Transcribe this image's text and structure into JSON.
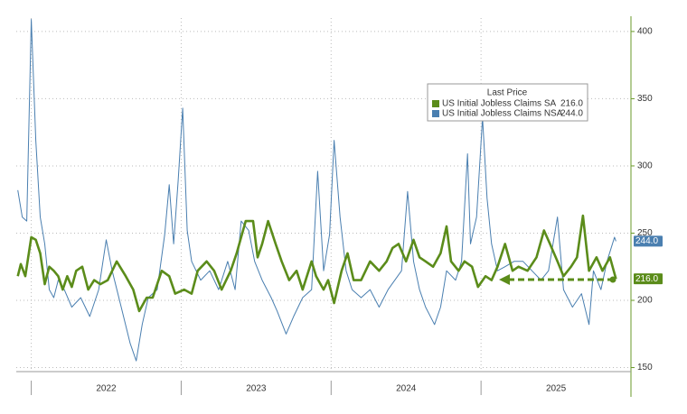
{
  "chart_data": {
    "type": "line",
    "xlim": [
      2021.9,
      2026.0
    ],
    "xticks": [
      2022,
      2023,
      2024,
      2025
    ],
    "ylim": [
      147,
      410
    ],
    "yticks": [
      150,
      200,
      250,
      300,
      350,
      400
    ],
    "grid": true,
    "legend_title": "Last Price",
    "legend": "upper right",
    "series": [
      {
        "name": "US Initial Jobless Claims SA",
        "color": "#5b8c1a",
        "last_price": {
          "value": 216,
          "label": "216.0"
        },
        "x": [
          2021.91,
          2021.93,
          2021.96,
          2022.0,
          2022.03,
          2022.06,
          2022.09,
          2022.12,
          2022.15,
          2022.18,
          2022.21,
          2022.24,
          2022.27,
          2022.3,
          2022.34,
          2022.38,
          2022.42,
          2022.46,
          2022.51,
          2022.57,
          2022.63,
          2022.68,
          2022.72,
          2022.77,
          2022.81,
          2022.87,
          2022.92,
          2022.96,
          2023.02,
          2023.07,
          2023.11,
          2023.17,
          2023.22,
          2023.27,
          2023.33,
          2023.37,
          2023.43,
          2023.48,
          2023.51,
          2023.54,
          2023.58,
          2023.63,
          2023.67,
          2023.72,
          2023.77,
          2023.81,
          2023.87,
          2023.9,
          2023.95,
          2023.98,
          2024.02,
          2024.07,
          2024.11,
          2024.15,
          2024.2,
          2024.26,
          2024.32,
          2024.37,
          2024.41,
          2024.45,
          2024.5,
          2024.55,
          2024.59,
          2024.63,
          2024.68,
          2024.73,
          2024.77,
          2024.8,
          2024.85,
          2024.89,
          2024.94,
          2024.98,
          2025.03,
          2025.07,
          2025.11,
          2025.16,
          2025.21,
          2025.25,
          2025.31,
          2025.37,
          2025.42,
          2025.46,
          2025.51,
          2025.55,
          2025.6,
          2025.64,
          2025.68,
          2025.72,
          2025.77,
          2025.81,
          2025.86,
          2025.9
        ],
        "values": [
          218,
          227,
          218,
          247,
          245,
          235,
          212,
          225,
          222,
          218,
          208,
          218,
          210,
          222,
          225,
          208,
          215,
          212,
          215,
          229,
          218,
          208,
          192,
          202,
          202,
          222,
          218,
          205,
          208,
          205,
          222,
          229,
          222,
          208,
          222,
          235,
          259,
          259,
          232,
          242,
          259,
          242,
          229,
          215,
          222,
          208,
          229,
          218,
          208,
          215,
          198,
          222,
          235,
          215,
          215,
          229,
          222,
          229,
          239,
          242,
          229,
          245,
          232,
          229,
          225,
          235,
          255,
          229,
          222,
          229,
          225,
          210,
          218,
          215,
          225,
          242,
          222,
          225,
          222,
          232,
          252,
          242,
          229,
          218,
          225,
          232,
          263,
          222,
          232,
          222,
          232,
          216
        ]
      },
      {
        "name": "US Initial Jobless Claims NSA",
        "color": "#4a7fb0",
        "last_price": {
          "value": 244,
          "label": "244.0"
        },
        "x": [
          2021.91,
          2021.94,
          2021.97,
          2022.0,
          2022.03,
          2022.06,
          2022.09,
          2022.12,
          2022.15,
          2022.18,
          2022.22,
          2022.27,
          2022.33,
          2022.39,
          2022.45,
          2022.5,
          2022.54,
          2022.6,
          2022.66,
          2022.7,
          2022.74,
          2022.78,
          2022.84,
          2022.89,
          2022.92,
          2022.95,
          2022.98,
          2023.01,
          2023.04,
          2023.07,
          2023.13,
          2023.19,
          2023.25,
          2023.31,
          2023.36,
          2023.4,
          2023.45,
          2023.49,
          2023.54,
          2023.6,
          2023.64,
          2023.7,
          2023.75,
          2023.81,
          2023.87,
          2023.91,
          2023.95,
          2023.99,
          2024.02,
          2024.06,
          2024.1,
          2024.14,
          2024.2,
          2024.26,
          2024.32,
          2024.38,
          2024.47,
          2024.51,
          2024.55,
          2024.59,
          2024.63,
          2024.69,
          2024.73,
          2024.77,
          2024.83,
          2024.87,
          2024.91,
          2024.93,
          2024.97,
          2025.01,
          2025.04,
          2025.07,
          2025.11,
          2025.16,
          2025.22,
          2025.28,
          2025.34,
          2025.4,
          2025.45,
          2025.51,
          2025.55,
          2025.61,
          2025.67,
          2025.72,
          2025.75,
          2025.8,
          2025.84,
          2025.89,
          2025.9
        ],
        "values": [
          282,
          262,
          259,
          409,
          319,
          262,
          242,
          208,
          202,
          215,
          208,
          195,
          202,
          188,
          208,
          245,
          222,
          195,
          168,
          155,
          182,
          202,
          208,
          249,
          286,
          242,
          289,
          343,
          252,
          229,
          215,
          222,
          208,
          229,
          208,
          259,
          252,
          229,
          215,
          202,
          192,
          175,
          188,
          202,
          208,
          296,
          222,
          249,
          319,
          262,
          222,
          208,
          202,
          208,
          195,
          208,
          222,
          281,
          229,
          208,
          195,
          182,
          195,
          222,
          215,
          229,
          309,
          242,
          262,
          336,
          276,
          242,
          222,
          225,
          229,
          229,
          222,
          215,
          222,
          262,
          208,
          195,
          205,
          182,
          222,
          208,
          229,
          247,
          244
        ]
      }
    ]
  }
}
